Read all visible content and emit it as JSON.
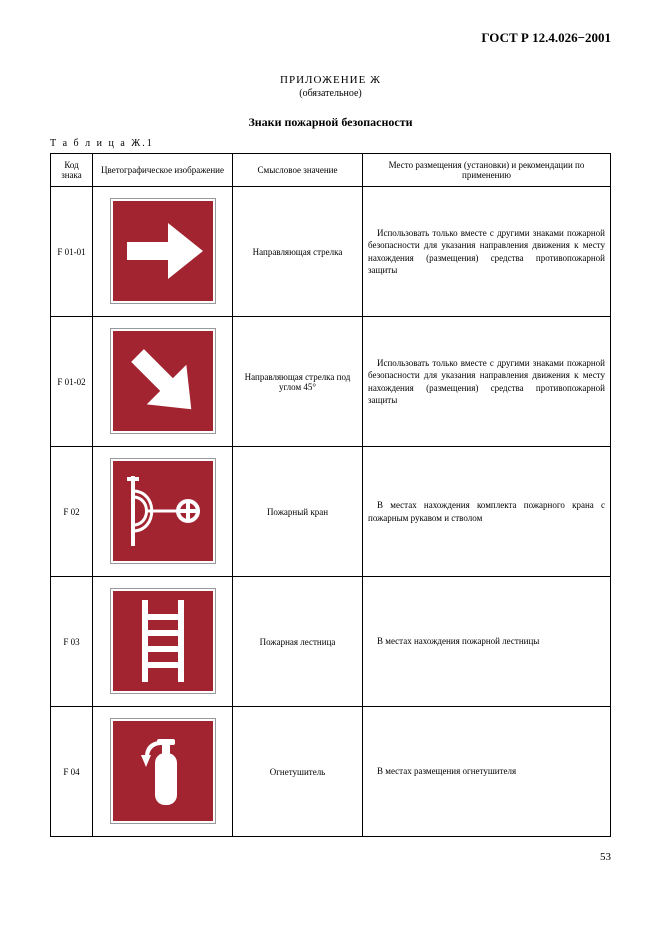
{
  "doc_id": "ГОСТ Р 12.4.026−2001",
  "appendix_title": "ПРИЛОЖЕНИЕ Ж",
  "appendix_sub": "(обязательное)",
  "section_title": "Знаки пожарной безопасности",
  "table_label": "Т а б л и ц а  Ж.1",
  "page_number": "53",
  "columns": {
    "code": "Код знака",
    "image": "Цветографическое изображение",
    "meaning": "Смысловое значение",
    "placement": "Место размещения (установки) и рекомендации по применению"
  },
  "sign_style": {
    "fill": "#a22430",
    "stroke": "#ffffff",
    "size": 100
  },
  "rows": [
    {
      "code": "F 01-01",
      "icon": "arrow-right",
      "meaning": "Направляющая стрелка",
      "placement": "Использовать только вместе с другими знаками пожарной безопасности для указания направления движения к месту нахождения (размещения) средства противопожарной защиты"
    },
    {
      "code": "F 01-02",
      "icon": "arrow-diag",
      "meaning": "Направляющая стрелка под углом 45°",
      "placement": "Использовать только вместе с другими знаками пожарной безопасности для указания направления движения к месту нахождения (размещения) средства противопожарной защиты"
    },
    {
      "code": "F 02",
      "icon": "fire-hose",
      "meaning": "Пожарный кран",
      "placement": "В местах нахождения комплекта пожарного крана с пожарным рукавом и стволом"
    },
    {
      "code": "F 03",
      "icon": "ladder",
      "meaning": "Пожарная лестница",
      "placement": "В местах нахождения пожарной лестницы"
    },
    {
      "code": "F 04",
      "icon": "extinguisher",
      "meaning": "Огнетушитель",
      "placement": "В местах размещения огнетушителя"
    }
  ]
}
